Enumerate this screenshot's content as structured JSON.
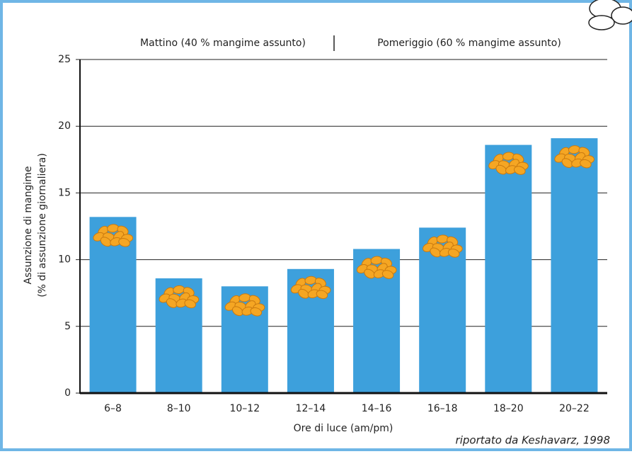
{
  "chart_data": {
    "type": "bar",
    "annotations": [
      "Mattino (40 % mangime assunto)",
      "Pomeriggio (60 % mangime assunto)"
    ],
    "ylabel": [
      "Assunzione di mangime",
      "(% di assunzione giornaliera)"
    ],
    "xlabel": "Ore di luce (am/pm)",
    "source": "riportato da Keshavarz, 1998",
    "categories": [
      "6–8",
      "8–10",
      "10–12",
      "12–14",
      "14–16",
      "16–18",
      "18–20",
      "20–22"
    ],
    "values": [
      13.2,
      8.6,
      8.0,
      9.3,
      10.8,
      12.4,
      18.6,
      19.1
    ],
    "color": "#3da0dc",
    "ylim": [
      0,
      25
    ],
    "yticks": [
      0,
      5,
      10,
      15,
      20,
      25
    ],
    "grid": true
  }
}
